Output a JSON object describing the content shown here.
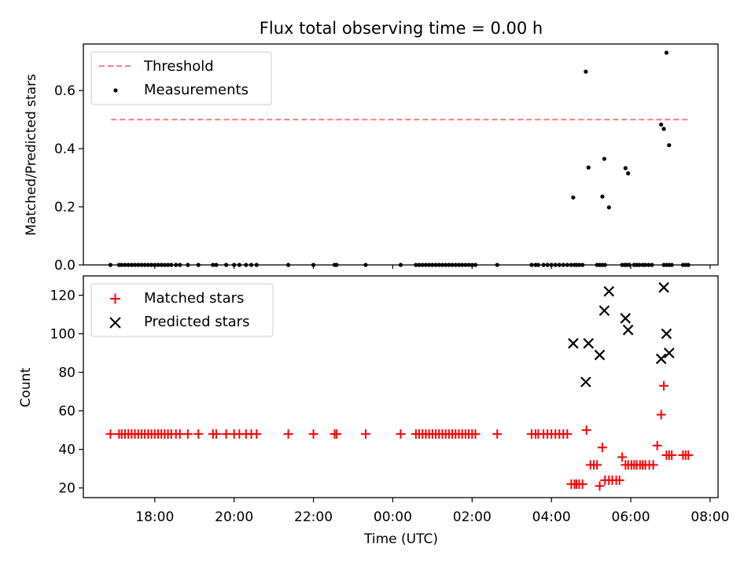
{
  "chart_data": [
    {
      "type": "scatter",
      "title": "Flux total observing time = 0.00 h",
      "xlabel": "",
      "ylabel": "Matched/Predicted stars",
      "ylim": [
        0,
        0.76
      ],
      "y_ticks": [
        "0.0",
        "0.2",
        "0.4",
        "0.6"
      ],
      "x_tick_labels_visible": false,
      "legend": {
        "placement": "top-left",
        "entries": [
          "Threshold",
          "Measurements"
        ]
      },
      "threshold": {
        "name": "Threshold",
        "value": 0.5,
        "x_range": [
          "16:54",
          "07:27"
        ],
        "color": "#ff7f7f",
        "style": "dashed"
      },
      "series": [
        {
          "name": "Measurements",
          "color": "#000000",
          "marker": "dot",
          "points": [
            [
              "16:53",
              0
            ],
            [
              "17:06",
              0
            ],
            [
              "17:10",
              0
            ],
            [
              "17:15",
              0
            ],
            [
              "17:20",
              0
            ],
            [
              "17:25",
              0
            ],
            [
              "17:30",
              0
            ],
            [
              "17:35",
              0
            ],
            [
              "17:40",
              0
            ],
            [
              "17:45",
              0
            ],
            [
              "17:50",
              0
            ],
            [
              "17:55",
              0
            ],
            [
              "18:00",
              0
            ],
            [
              "18:05",
              0
            ],
            [
              "18:10",
              0
            ],
            [
              "18:15",
              0
            ],
            [
              "18:20",
              0
            ],
            [
              "18:25",
              0
            ],
            [
              "18:32",
              0
            ],
            [
              "18:38",
              0
            ],
            [
              "18:50",
              0
            ],
            [
              "19:06",
              0
            ],
            [
              "19:28",
              0
            ],
            [
              "19:33",
              0
            ],
            [
              "19:48",
              0
            ],
            [
              "20:00",
              0
            ],
            [
              "20:08",
              0
            ],
            [
              "20:18",
              0
            ],
            [
              "20:26",
              0
            ],
            [
              "20:34",
              0
            ],
            [
              "21:22",
              0
            ],
            [
              "22:00",
              0
            ],
            [
              "22:32",
              0
            ],
            [
              "22:35",
              0
            ],
            [
              "23:19",
              0
            ],
            [
              "00:12",
              0
            ],
            [
              "00:35",
              0
            ],
            [
              "00:40",
              0
            ],
            [
              "00:45",
              0
            ],
            [
              "00:50",
              0
            ],
            [
              "00:55",
              0
            ],
            [
              "01:00",
              0
            ],
            [
              "01:05",
              0
            ],
            [
              "01:10",
              0
            ],
            [
              "01:15",
              0
            ],
            [
              "01:20",
              0
            ],
            [
              "01:25",
              0
            ],
            [
              "01:30",
              0
            ],
            [
              "01:35",
              0
            ],
            [
              "01:40",
              0
            ],
            [
              "01:45",
              0
            ],
            [
              "01:50",
              0
            ],
            [
              "01:55",
              0
            ],
            [
              "02:00",
              0
            ],
            [
              "02:05",
              0
            ],
            [
              "02:38",
              0
            ],
            [
              "03:30",
              0
            ],
            [
              "03:36",
              0
            ],
            [
              "03:40",
              0
            ],
            [
              "03:48",
              0
            ],
            [
              "03:54",
              0
            ],
            [
              "04:00",
              0
            ],
            [
              "04:06",
              0
            ],
            [
              "04:12",
              0
            ],
            [
              "04:18",
              0
            ],
            [
              "04:24",
              0
            ],
            [
              "04:30",
              0
            ],
            [
              "04:35",
              0
            ],
            [
              "04:38",
              0
            ],
            [
              "04:42",
              0
            ],
            [
              "04:47",
              0
            ],
            [
              "05:09",
              0
            ],
            [
              "05:13",
              0
            ],
            [
              "05:17",
              0
            ],
            [
              "05:21",
              0
            ],
            [
              "05:47",
              0
            ],
            [
              "05:51",
              0
            ],
            [
              "05:54",
              0
            ],
            [
              "05:58",
              0
            ],
            [
              "06:05",
              0
            ],
            [
              "06:09",
              0
            ],
            [
              "06:13",
              0
            ],
            [
              "06:18",
              0
            ],
            [
              "06:22",
              0
            ],
            [
              "06:27",
              0
            ],
            [
              "06:32",
              0
            ],
            [
              "06:50",
              0
            ],
            [
              "06:54",
              0
            ],
            [
              "06:58",
              0
            ],
            [
              "07:02",
              0
            ],
            [
              "07:19",
              0
            ],
            [
              "07:23",
              0
            ],
            [
              "07:27",
              0
            ],
            [
              "04:33",
              0.232
            ],
            [
              "04:52",
              0.665
            ],
            [
              "04:56",
              0.335
            ],
            [
              "05:17",
              0.235
            ],
            [
              "05:20",
              0.365
            ],
            [
              "05:27",
              0.198
            ],
            [
              "05:52",
              0.333
            ],
            [
              "05:56",
              0.315
            ],
            [
              "06:46",
              0.483
            ],
            [
              "06:50",
              0.468
            ],
            [
              "06:54",
              0.73
            ],
            [
              "06:58",
              0.412
            ]
          ]
        }
      ]
    },
    {
      "type": "scatter",
      "title": "",
      "xlabel": "Time (UTC)",
      "ylabel": "Count",
      "ylim": [
        15,
        130
      ],
      "y_ticks": [
        "20",
        "40",
        "60",
        "80",
        "100",
        "120"
      ],
      "x_ticks": [
        "18:00",
        "20:00",
        "22:00",
        "00:00",
        "02:00",
        "04:00",
        "06:00",
        "08:00"
      ],
      "x_range": [
        "16:12",
        "08:12"
      ],
      "legend": {
        "placement": "top-left",
        "entries": [
          "Matched stars",
          "Predicted stars"
        ]
      },
      "series": [
        {
          "name": "Matched stars",
          "color": "#ff0000",
          "marker": "plus",
          "points": [
            [
              "16:53",
              48
            ],
            [
              "17:06",
              48
            ],
            [
              "17:10",
              48
            ],
            [
              "17:15",
              48
            ],
            [
              "17:20",
              48
            ],
            [
              "17:25",
              48
            ],
            [
              "17:30",
              48
            ],
            [
              "17:35",
              48
            ],
            [
              "17:40",
              48
            ],
            [
              "17:45",
              48
            ],
            [
              "17:50",
              48
            ],
            [
              "17:55",
              48
            ],
            [
              "18:00",
              48
            ],
            [
              "18:05",
              48
            ],
            [
              "18:10",
              48
            ],
            [
              "18:15",
              48
            ],
            [
              "18:20",
              48
            ],
            [
              "18:25",
              48
            ],
            [
              "18:32",
              48
            ],
            [
              "18:38",
              48
            ],
            [
              "18:50",
              48
            ],
            [
              "19:06",
              48
            ],
            [
              "19:28",
              48
            ],
            [
              "19:33",
              48
            ],
            [
              "19:48",
              48
            ],
            [
              "20:00",
              48
            ],
            [
              "20:08",
              48
            ],
            [
              "20:18",
              48
            ],
            [
              "20:26",
              48
            ],
            [
              "20:34",
              48
            ],
            [
              "21:22",
              48
            ],
            [
              "22:00",
              48
            ],
            [
              "22:32",
              48
            ],
            [
              "22:35",
              48
            ],
            [
              "23:19",
              48
            ],
            [
              "00:12",
              48
            ],
            [
              "00:35",
              48
            ],
            [
              "00:40",
              48
            ],
            [
              "00:45",
              48
            ],
            [
              "00:50",
              48
            ],
            [
              "00:55",
              48
            ],
            [
              "01:00",
              48
            ],
            [
              "01:05",
              48
            ],
            [
              "01:10",
              48
            ],
            [
              "01:15",
              48
            ],
            [
              "01:20",
              48
            ],
            [
              "01:25",
              48
            ],
            [
              "01:30",
              48
            ],
            [
              "01:35",
              48
            ],
            [
              "01:40",
              48
            ],
            [
              "01:45",
              48
            ],
            [
              "01:50",
              48
            ],
            [
              "01:55",
              48
            ],
            [
              "02:00",
              48
            ],
            [
              "02:05",
              48
            ],
            [
              "02:38",
              48
            ],
            [
              "03:30",
              48
            ],
            [
              "03:36",
              48
            ],
            [
              "03:40",
              48
            ],
            [
              "03:48",
              48
            ],
            [
              "03:54",
              48
            ],
            [
              "04:00",
              48
            ],
            [
              "04:06",
              48
            ],
            [
              "04:12",
              48
            ],
            [
              "04:18",
              48
            ],
            [
              "04:24",
              48
            ],
            [
              "04:30",
              22
            ],
            [
              "04:35",
              22
            ],
            [
              "04:38",
              22
            ],
            [
              "04:42",
              22
            ],
            [
              "04:47",
              22
            ],
            [
              "04:53",
              50
            ],
            [
              "04:59",
              32
            ],
            [
              "05:04",
              32
            ],
            [
              "05:09",
              32
            ],
            [
              "05:13",
              21
            ],
            [
              "05:17",
              41
            ],
            [
              "05:21",
              24
            ],
            [
              "05:27",
              24
            ],
            [
              "05:32",
              24
            ],
            [
              "05:38",
              24
            ],
            [
              "05:43",
              24
            ],
            [
              "05:47",
              36
            ],
            [
              "05:52",
              32
            ],
            [
              "05:56",
              32
            ],
            [
              "06:01",
              32
            ],
            [
              "06:05",
              32
            ],
            [
              "06:09",
              32
            ],
            [
              "06:14",
              32
            ],
            [
              "06:18",
              32
            ],
            [
              "06:22",
              32
            ],
            [
              "06:28",
              32
            ],
            [
              "06:34",
              32
            ],
            [
              "06:40",
              42
            ],
            [
              "06:46",
              58
            ],
            [
              "06:50",
              73
            ],
            [
              "06:54",
              37
            ],
            [
              "06:58",
              37
            ],
            [
              "07:02",
              37
            ],
            [
              "07:19",
              37
            ],
            [
              "07:23",
              37
            ],
            [
              "07:27",
              37
            ]
          ]
        },
        {
          "name": "Predicted stars",
          "color": "#000000",
          "marker": "x",
          "points": [
            [
              "04:33",
              95
            ],
            [
              "04:52",
              75
            ],
            [
              "04:56",
              95
            ],
            [
              "05:13",
              89
            ],
            [
              "05:20",
              112
            ],
            [
              "05:27",
              122
            ],
            [
              "05:52",
              108
            ],
            [
              "05:56",
              102
            ],
            [
              "06:46",
              87
            ],
            [
              "06:50",
              124
            ],
            [
              "06:54",
              100
            ],
            [
              "06:58",
              90
            ]
          ]
        }
      ]
    }
  ]
}
